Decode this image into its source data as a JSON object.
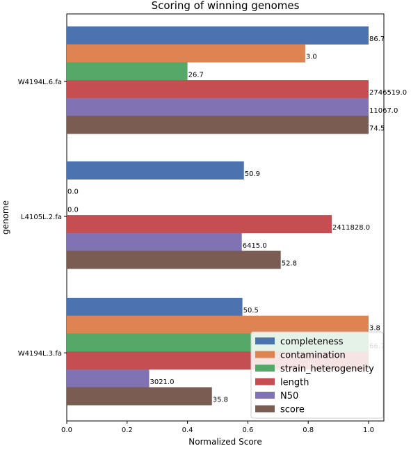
{
  "chart_data": {
    "type": "bar",
    "orientation": "horizontal",
    "title": "Scoring of winning genomes",
    "xlabel": "Normalized Score",
    "ylabel": "genome",
    "xlim": [
      0.0,
      1.05
    ],
    "xticks": [
      "0.0",
      "0.2",
      "0.4",
      "0.6",
      "0.8",
      "1.0"
    ],
    "categories": [
      "W4194L.6.fa",
      "L4105L.2.fa",
      "W4194L.3.fa"
    ],
    "legend_position": "lower-right",
    "series": [
      {
        "name": "completeness",
        "color": "#4c72b0",
        "values": [
          1.0,
          0.587,
          0.582
        ],
        "labels": [
          "86.7",
          "50.9",
          "50.5"
        ]
      },
      {
        "name": "contamination",
        "color": "#dd8452",
        "values": [
          0.79,
          0.0,
          1.0
        ],
        "labels": [
          "3.0",
          "0.0",
          "3.8"
        ]
      },
      {
        "name": "strain_heterogeneity",
        "color": "#55a868",
        "values": [
          0.4,
          0.0,
          1.0
        ],
        "labels": [
          "26.7",
          "0.0",
          "66.7"
        ]
      },
      {
        "name": "length",
        "color": "#c44e52",
        "values": [
          1.0,
          0.878,
          1.0
        ],
        "labels": [
          "2746519.0",
          "2411828.0",
          ""
        ]
      },
      {
        "name": "N50",
        "color": "#8172b3",
        "values": [
          1.0,
          0.58,
          0.273
        ],
        "labels": [
          "11067.0",
          "6415.0",
          "3021.0"
        ]
      },
      {
        "name": "score",
        "color": "#7a5c53",
        "values": [
          1.0,
          0.709,
          0.481
        ],
        "labels": [
          "74.5",
          "52.8",
          "35.8"
        ]
      }
    ]
  }
}
